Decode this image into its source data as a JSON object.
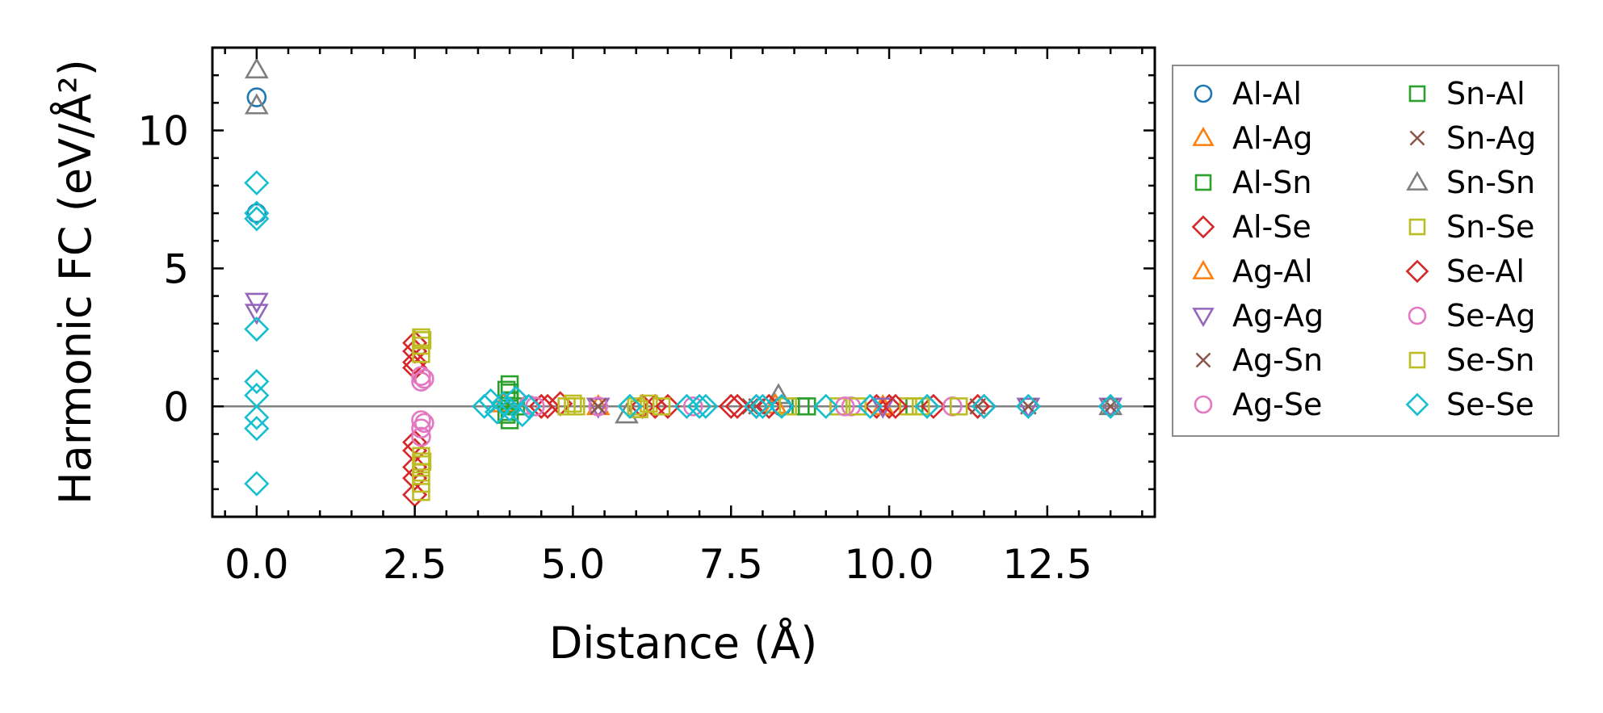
{
  "chart_data": {
    "type": "scatter",
    "title": "",
    "xlabel": "Distance (Å)",
    "ylabel": "Harmonic FC (eV/Å²)",
    "xlim": [
      -0.7,
      14.2
    ],
    "ylim": [
      -4.0,
      13.0
    ],
    "x_ticks": [
      0.0,
      2.5,
      5.0,
      7.5,
      10.0,
      12.5
    ],
    "x_tick_labels": [
      "0.0",
      "2.5",
      "5.0",
      "7.5",
      "10.0",
      "12.5"
    ],
    "y_ticks": [
      0,
      5,
      10
    ],
    "y_tick_labels": [
      "0",
      "5",
      "10"
    ],
    "zero_line": 0,
    "legend_position": "outside right",
    "series": [
      {
        "name": "Al-Al",
        "marker": "circle",
        "color": "#1f77b4",
        "points": [
          [
            0.0,
            11.2
          ],
          [
            0.0,
            7.0
          ],
          [
            8.3,
            0.0
          ]
        ]
      },
      {
        "name": "Al-Ag",
        "marker": "triangle-up",
        "color": "#ff7f0e",
        "points": [
          [
            3.9,
            0.1
          ],
          [
            8.2,
            0.05
          ]
        ]
      },
      {
        "name": "Al-Sn",
        "marker": "square",
        "color": "#2ca02c",
        "points": [
          [
            4.0,
            0.8
          ],
          [
            4.0,
            0.5
          ],
          [
            4.0,
            0.2
          ],
          [
            4.0,
            -0.2
          ],
          [
            4.0,
            -0.5
          ],
          [
            4.1,
            0.0
          ],
          [
            8.6,
            0.0
          ],
          [
            10.4,
            0.0
          ]
        ]
      },
      {
        "name": "Al-Se",
        "marker": "diamond",
        "color": "#d62728",
        "points": [
          [
            2.5,
            2.3
          ],
          [
            2.5,
            2.0
          ],
          [
            2.5,
            1.6
          ],
          [
            2.5,
            1.4
          ],
          [
            2.5,
            -1.3
          ],
          [
            2.5,
            -1.6
          ],
          [
            2.5,
            -2.2
          ],
          [
            2.5,
            -2.6
          ],
          [
            2.5,
            -3.2
          ],
          [
            4.6,
            0.0
          ],
          [
            4.8,
            0.1
          ],
          [
            6.1,
            0.0
          ],
          [
            6.3,
            0.0
          ],
          [
            7.5,
            0.0
          ],
          [
            7.9,
            0.0
          ],
          [
            9.8,
            0.0
          ],
          [
            10.0,
            0.0
          ],
          [
            10.7,
            0.0
          ],
          [
            11.4,
            0.0
          ]
        ]
      },
      {
        "name": "Ag-Al",
        "marker": "triangle-up",
        "color": "#ff7f0e",
        "points": [
          [
            5.4,
            0.0
          ],
          [
            9.9,
            0.0
          ]
        ]
      },
      {
        "name": "Ag-Ag",
        "marker": "triangle-down",
        "color": "#9467bd",
        "points": [
          [
            0.0,
            3.8
          ],
          [
            0.0,
            3.4
          ],
          [
            5.4,
            0.0
          ],
          [
            9.9,
            0.0
          ],
          [
            12.2,
            0.0
          ],
          [
            13.5,
            0.0
          ]
        ]
      },
      {
        "name": "Ag-Sn",
        "marker": "x",
        "color": "#8c564b",
        "points": [
          [
            5.4,
            0.0
          ],
          [
            7.9,
            0.0
          ],
          [
            11.4,
            0.0
          ],
          [
            13.5,
            0.0
          ]
        ]
      },
      {
        "name": "Ag-Se",
        "marker": "circle",
        "color": "#e377c2",
        "points": [
          [
            2.6,
            1.1
          ],
          [
            2.6,
            0.9
          ],
          [
            2.6,
            -0.5
          ],
          [
            2.6,
            -0.8
          ],
          [
            2.6,
            -1.1
          ],
          [
            4.3,
            0.05
          ],
          [
            5.4,
            0.0
          ],
          [
            9.4,
            0.0
          ],
          [
            11.0,
            0.0
          ]
        ]
      },
      {
        "name": "Sn-Al",
        "marker": "square",
        "color": "#2ca02c",
        "points": [
          [
            3.95,
            0.6
          ],
          [
            3.95,
            -0.3
          ],
          [
            8.7,
            0.0
          ]
        ]
      },
      {
        "name": "Sn-Ag",
        "marker": "x",
        "color": "#8c564b",
        "points": [
          [
            5.4,
            0.0
          ],
          [
            7.8,
            0.0
          ],
          [
            12.2,
            0.0
          ]
        ]
      },
      {
        "name": "Sn-Sn",
        "marker": "triangle-up",
        "color": "#7f7f7f",
        "points": [
          [
            0.0,
            12.2
          ],
          [
            0.0,
            10.9
          ],
          [
            5.85,
            -0.3
          ],
          [
            8.25,
            0.4
          ],
          [
            13.5,
            0.0
          ]
        ]
      },
      {
        "name": "Sn-Se",
        "marker": "square",
        "color": "#bcbd22",
        "points": [
          [
            2.6,
            2.5
          ],
          [
            2.6,
            2.2
          ],
          [
            2.6,
            1.9
          ],
          [
            2.6,
            -1.8
          ],
          [
            2.6,
            -2.1
          ],
          [
            2.6,
            -2.4
          ],
          [
            2.6,
            -2.8
          ],
          [
            2.6,
            -3.1
          ],
          [
            4.9,
            0.0
          ],
          [
            5.0,
            0.1
          ],
          [
            6.0,
            0.0
          ],
          [
            6.2,
            0.1
          ],
          [
            9.2,
            0.0
          ],
          [
            9.5,
            0.0
          ],
          [
            10.3,
            0.0
          ],
          [
            11.1,
            0.0
          ]
        ]
      },
      {
        "name": "Se-Al",
        "marker": "diamond",
        "color": "#d62728",
        "points": [
          [
            4.5,
            0.0
          ],
          [
            6.5,
            0.0
          ],
          [
            7.6,
            0.0
          ],
          [
            8.1,
            0.0
          ],
          [
            10.1,
            0.0
          ],
          [
            11.5,
            0.0
          ]
        ]
      },
      {
        "name": "Se-Ag",
        "marker": "circle",
        "color": "#e377c2",
        "points": [
          [
            2.65,
            1.0
          ],
          [
            2.65,
            -0.6
          ],
          [
            4.4,
            0.0
          ],
          [
            6.9,
            0.0
          ],
          [
            9.3,
            0.0
          ]
        ]
      },
      {
        "name": "Se-Sn",
        "marker": "square",
        "color": "#bcbd22",
        "points": [
          [
            2.62,
            2.4
          ],
          [
            2.62,
            -2.0
          ],
          [
            5.05,
            0.0
          ],
          [
            6.05,
            -0.1
          ],
          [
            6.4,
            0.0
          ],
          [
            8.4,
            0.0
          ],
          [
            10.5,
            0.0
          ]
        ]
      },
      {
        "name": "Se-Se",
        "marker": "diamond",
        "color": "#17becf",
        "points": [
          [
            0.0,
            8.1
          ],
          [
            0.0,
            7.0
          ],
          [
            0.0,
            6.8
          ],
          [
            0.0,
            2.8
          ],
          [
            0.0,
            0.9
          ],
          [
            0.0,
            0.4
          ],
          [
            0.0,
            -0.4
          ],
          [
            0.0,
            -0.8
          ],
          [
            0.0,
            -2.8
          ],
          [
            3.6,
            0.0
          ],
          [
            3.7,
            0.2
          ],
          [
            3.8,
            -0.2
          ],
          [
            3.9,
            0.1
          ],
          [
            4.0,
            -0.1
          ],
          [
            4.1,
            0.3
          ],
          [
            4.2,
            -0.3
          ],
          [
            4.3,
            0.0
          ],
          [
            5.9,
            0.0
          ],
          [
            6.8,
            0.0
          ],
          [
            7.0,
            0.0
          ],
          [
            7.1,
            0.0
          ],
          [
            7.9,
            0.0
          ],
          [
            8.0,
            0.0
          ],
          [
            8.3,
            0.0
          ],
          [
            9.0,
            0.0
          ],
          [
            9.7,
            0.0
          ],
          [
            10.6,
            0.0
          ],
          [
            11.5,
            0.0
          ],
          [
            12.2,
            0.0
          ],
          [
            13.5,
            0.0
          ]
        ]
      }
    ]
  }
}
